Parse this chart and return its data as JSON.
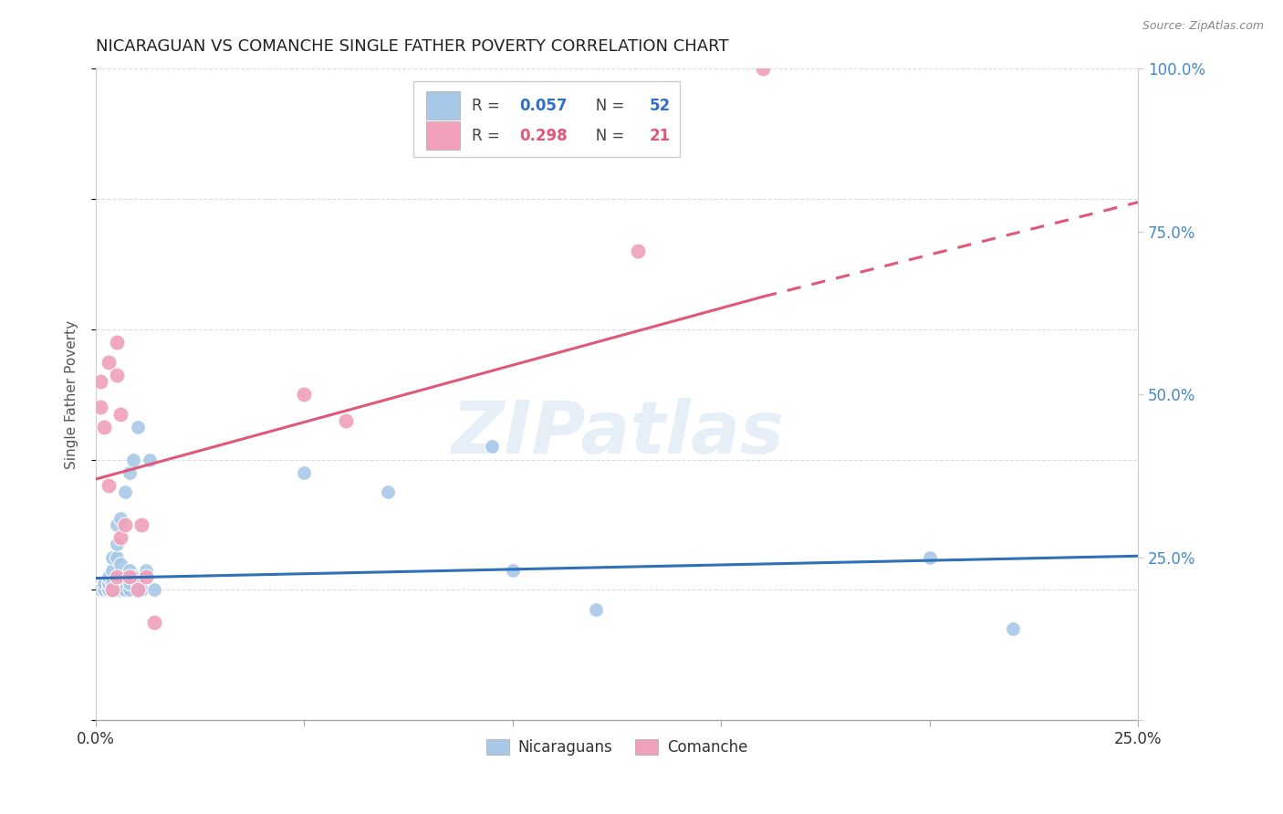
{
  "title": "NICARAGUAN VS COMANCHE SINGLE FATHER POVERTY CORRELATION CHART",
  "source": "Source: ZipAtlas.com",
  "ylabel": "Single Father Poverty",
  "xlim": [
    0.0,
    0.25
  ],
  "ylim": [
    0.0,
    1.0
  ],
  "xticks": [
    0.0,
    0.05,
    0.1,
    0.15,
    0.2,
    0.25
  ],
  "yticks_right": [
    0.0,
    0.25,
    0.5,
    0.75,
    1.0
  ],
  "ytick_labels_right": [
    "",
    "25.0%",
    "50.0%",
    "75.0%",
    "100.0%"
  ],
  "blue_R": 0.057,
  "blue_N": 52,
  "pink_R": 0.298,
  "pink_N": 21,
  "blue_color": "#a8c8e8",
  "pink_color": "#f0a0b8",
  "blue_line_color": "#3070b8",
  "pink_line_color": "#e05878",
  "blue_x": [
    0.001,
    0.001,
    0.001,
    0.001,
    0.001,
    0.002,
    0.002,
    0.002,
    0.002,
    0.002,
    0.003,
    0.003,
    0.003,
    0.003,
    0.003,
    0.003,
    0.004,
    0.004,
    0.004,
    0.004,
    0.004,
    0.005,
    0.005,
    0.005,
    0.005,
    0.005,
    0.006,
    0.006,
    0.006,
    0.006,
    0.007,
    0.007,
    0.007,
    0.008,
    0.008,
    0.008,
    0.008,
    0.009,
    0.009,
    0.01,
    0.01,
    0.011,
    0.012,
    0.013,
    0.014,
    0.05,
    0.07,
    0.095,
    0.1,
    0.12,
    0.2,
    0.22
  ],
  "blue_y": [
    0.2,
    0.2,
    0.2,
    0.2,
    0.2,
    0.2,
    0.2,
    0.2,
    0.2,
    0.21,
    0.2,
    0.2,
    0.2,
    0.21,
    0.21,
    0.22,
    0.2,
    0.2,
    0.21,
    0.23,
    0.25,
    0.2,
    0.22,
    0.25,
    0.27,
    0.3,
    0.2,
    0.22,
    0.24,
    0.31,
    0.2,
    0.22,
    0.35,
    0.2,
    0.21,
    0.23,
    0.38,
    0.22,
    0.4,
    0.21,
    0.45,
    0.2,
    0.23,
    0.4,
    0.2,
    0.38,
    0.35,
    0.42,
    0.23,
    0.17,
    0.25,
    0.14
  ],
  "pink_x": [
    0.001,
    0.001,
    0.002,
    0.003,
    0.003,
    0.004,
    0.005,
    0.005,
    0.005,
    0.006,
    0.006,
    0.007,
    0.008,
    0.01,
    0.011,
    0.012,
    0.014,
    0.05,
    0.06,
    0.13,
    0.16
  ],
  "pink_y": [
    0.48,
    0.52,
    0.45,
    0.36,
    0.55,
    0.2,
    0.53,
    0.58,
    0.22,
    0.28,
    0.47,
    0.3,
    0.22,
    0.2,
    0.3,
    0.22,
    0.15,
    0.5,
    0.46,
    0.72,
    1.0
  ],
  "pink_line_x0": 0.0,
  "pink_line_y0": 0.37,
  "pink_line_x1": 0.16,
  "pink_line_y1": 0.65,
  "pink_line_dash_x1": 0.25,
  "pink_line_dash_y1": 0.795,
  "blue_line_x0": 0.0,
  "blue_line_y0": 0.218,
  "blue_line_x1": 0.25,
  "blue_line_y1": 0.252,
  "watermark": "ZIPatlas",
  "background_color": "#ffffff",
  "grid_color": "#dddddd"
}
